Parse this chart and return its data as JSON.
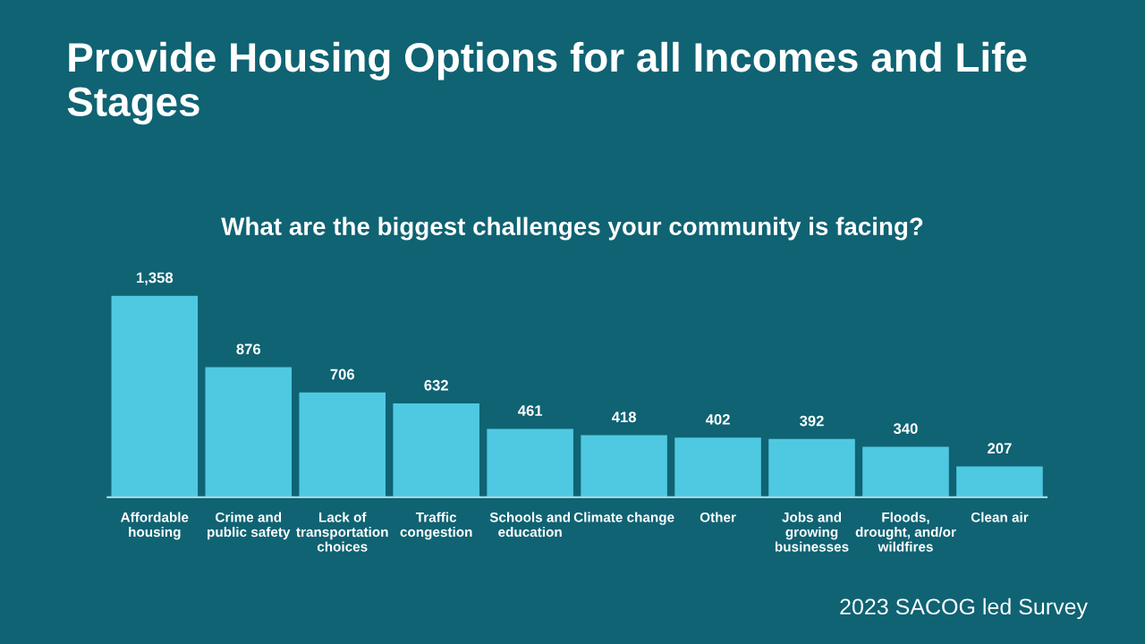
{
  "chart_data": {
    "type": "bar",
    "title": "Provide Housing Options for all Incomes and Life Stages",
    "subtitle": "What are the biggest challenges your community is facing?",
    "categories": [
      "Affordable housing",
      "Crime and public safety",
      "Lack of transportation choices",
      "Traffic congestion",
      "Schools and education",
      "Climate change",
      "Other",
      "Jobs and growing businesses",
      "Floods, drought, and/or wildfires",
      "Clean air"
    ],
    "values": [
      1358,
      876,
      706,
      632,
      461,
      418,
      402,
      392,
      340,
      207
    ],
    "value_labels": [
      "1,358",
      "876",
      "706",
      "632",
      "461",
      "418",
      "402",
      "392",
      "340",
      "207"
    ],
    "color": "#4fc9e1",
    "annotations": [
      "2023 SACOG led Survey"
    ],
    "grid": false,
    "legend": false
  }
}
